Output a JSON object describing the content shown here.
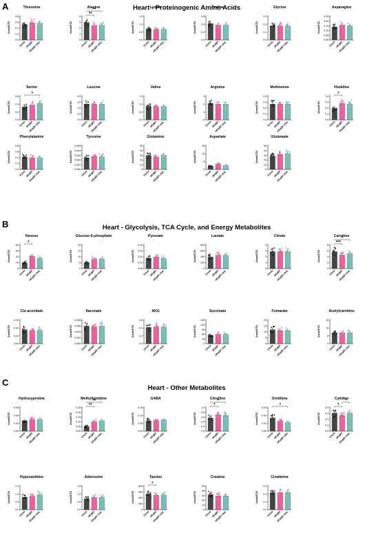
{
  "sections": [
    {
      "letter": "A",
      "title": "Heart - Proteinogenic Amino Acids"
    },
    {
      "letter": "B",
      "title": "Heart - Glycolysis, TCA Cycle, and Energy Metabolites"
    },
    {
      "letter": "C",
      "title": "Heart - Other Metabolites"
    }
  ],
  "colors": {
    "Chow": "#3b3b3b",
    "HFpEF": "#f0408c",
    "HFpEF+Adr.": "#5fb3ad"
  },
  "chart_data": [
    {
      "type": "bar",
      "section": 0,
      "title": "Threonine",
      "ylabel": "Area/ISTD",
      "categories": [
        "Chow",
        "HFpEF",
        "HFpEF+Adr."
      ],
      "values": [
        0.53,
        0.58,
        0.57
      ],
      "ylim": [
        0,
        0.8
      ],
      "yticks": [
        "0.0",
        "0.2",
        "0.4",
        "0.6",
        "0.8"
      ],
      "sig": []
    },
    {
      "type": "bar",
      "section": 0,
      "title": "Alanine",
      "ylabel": "Area/ISTD",
      "categories": [
        "Chow",
        "HFpEF",
        "HFpEF+Adr."
      ],
      "values": [
        3.0,
        2.5,
        2.5
      ],
      "ylim": [
        0,
        4
      ],
      "yticks": [
        "0",
        "1",
        "2",
        "3",
        "4"
      ],
      "sig": [
        {
          "from": 0,
          "to": 1,
          "label": "**"
        },
        {
          "from": 0,
          "to": 2,
          "label": "**"
        }
      ]
    },
    {
      "type": "bar",
      "section": 0,
      "title": "Lysine",
      "ylabel": "Area/ISTD",
      "categories": [
        "Chow",
        "HFpEF",
        "HFpEF+Adr."
      ],
      "values": [
        0.72,
        0.66,
        0.68
      ],
      "ylim": [
        0,
        1.5
      ],
      "yticks": [
        "0.0",
        "0.5",
        "1.0",
        "1.5"
      ],
      "sig": []
    },
    {
      "type": "bar",
      "section": 0,
      "title": "Proline",
      "ylabel": "Area/ISTD",
      "categories": [
        "Chow",
        "HFpEF",
        "HFpEF+Adr."
      ],
      "values": [
        0.42,
        0.38,
        0.38
      ],
      "ylim": [
        0,
        0.6
      ],
      "yticks": [
        "0.0",
        "0.2",
        "0.4",
        "0.6"
      ],
      "sig": []
    },
    {
      "type": "bar",
      "section": 0,
      "title": "Glycine",
      "ylabel": "Area/ISTD",
      "categories": [
        "Chow",
        "HFpEF",
        "HFpEF+Adr."
      ],
      "values": [
        0.18,
        0.18,
        0.18
      ],
      "ylim": [
        0,
        0.3
      ],
      "yticks": [
        "0.0",
        "0.1",
        "0.2",
        "0.3"
      ],
      "sig": []
    },
    {
      "type": "bar",
      "section": 0,
      "title": "Asparagine",
      "ylabel": "Area/ISTD",
      "categories": [
        "Chow",
        "HFpEF",
        "HFpEF+Adr."
      ],
      "values": [
        0.14,
        0.16,
        0.15
      ],
      "ylim": [
        0,
        0.25
      ],
      "yticks": [
        "0.00",
        "0.05",
        "0.10",
        "0.15",
        "0.20",
        "0.25"
      ],
      "sig": []
    },
    {
      "type": "bar",
      "section": 0,
      "title": "Serine",
      "ylabel": "Area/ISTD",
      "categories": [
        "Chow",
        "HFpEF",
        "HFpEF+Adr."
      ],
      "values": [
        0.33,
        0.38,
        0.42
      ],
      "ylim": [
        0,
        0.6
      ],
      "yticks": [
        "0.0",
        "0.2",
        "0.4",
        "0.6"
      ],
      "sig": [
        {
          "from": 0,
          "to": 2,
          "label": "*"
        }
      ]
    },
    {
      "type": "bar",
      "section": 0,
      "title": "Leucine",
      "ylabel": "Area/ISTD",
      "categories": [
        "Chow",
        "HFpEF",
        "HFpEF+Adr."
      ],
      "values": [
        1.35,
        1.33,
        1.33
      ],
      "ylim": [
        0,
        2.0
      ],
      "yticks": [
        "0.0",
        "0.5",
        "1.0",
        "1.5",
        "2.0"
      ],
      "sig": []
    },
    {
      "type": "bar",
      "section": 0,
      "title": "Valine",
      "ylabel": "Area/ISTD",
      "categories": [
        "Chow",
        "HFpEF",
        "HFpEF+Adr."
      ],
      "values": [
        0.86,
        0.86,
        0.85
      ],
      "ylim": [
        0,
        1.5
      ],
      "yticks": [
        "0.0",
        "0.5",
        "1.0",
        "1.5"
      ],
      "sig": []
    },
    {
      "type": "bar",
      "section": 0,
      "title": "Arginine",
      "ylabel": "Area/ISTD",
      "categories": [
        "Chow",
        "HFpEF",
        "HFpEF+Adr."
      ],
      "values": [
        2.1,
        2.0,
        2.0
      ],
      "ylim": [
        0,
        3
      ],
      "yticks": [
        "0",
        "1",
        "2",
        "3"
      ],
      "sig": []
    },
    {
      "type": "bar",
      "section": 0,
      "title": "Methionine",
      "ylabel": "Area/ISTD",
      "categories": [
        "Chow",
        "HFpEF",
        "HFpEF+Adr."
      ],
      "values": [
        0.27,
        0.27,
        0.27
      ],
      "ylim": [
        0,
        0.4
      ],
      "yticks": [
        "0.0",
        "0.1",
        "0.2",
        "0.3",
        "0.4"
      ],
      "sig": []
    },
    {
      "type": "bar",
      "section": 0,
      "title": "Histidine",
      "ylabel": "Area/ISTD",
      "categories": [
        "Chow",
        "HFpEF",
        "HFpEF+Adr."
      ],
      "values": [
        0.2,
        0.28,
        0.27
      ],
      "ylim": [
        0,
        0.4
      ],
      "yticks": [
        "0.0",
        "0.1",
        "0.2",
        "0.3",
        "0.4"
      ],
      "sig": [
        {
          "from": 0,
          "to": 1,
          "label": "*"
        }
      ]
    },
    {
      "type": "bar",
      "section": 0,
      "title": "Phenylalanine",
      "ylabel": "Area/ISTD",
      "categories": [
        "Chow",
        "HFpEF",
        "HFpEF+Adr."
      ],
      "values": [
        0.42,
        0.4,
        0.4
      ],
      "ylim": [
        0,
        0.8
      ],
      "yticks": [
        "0.0",
        "0.2",
        "0.4",
        "0.6",
        "0.8"
      ],
      "sig": []
    },
    {
      "type": "bar",
      "section": 0,
      "title": "Tyrosine",
      "ylabel": "Area/ISTD",
      "categories": [
        "Chow",
        "HFpEF",
        "HFpEF+Adr."
      ],
      "values": [
        0.0025,
        0.0028,
        0.0027
      ],
      "ylim": [
        0,
        0.005
      ],
      "yticks": [
        "0.000",
        "0.001",
        "0.002",
        "0.003",
        "0.004",
        "0.005"
      ],
      "sig": []
    },
    {
      "type": "bar",
      "section": 0,
      "title": "Glutamine",
      "ylabel": "Area/ISTD",
      "categories": [
        "Chow",
        "HFpEF",
        "HFpEF+Adr."
      ],
      "values": [
        30,
        27,
        30
      ],
      "ylim": [
        0,
        50
      ],
      "yticks": [
        "0",
        "10",
        "20",
        "30",
        "40",
        "50"
      ],
      "sig": []
    },
    {
      "type": "bar",
      "section": 0,
      "title": "Aspartate",
      "ylabel": "Area/ISTD",
      "categories": [
        "Chow",
        "HFpEF",
        "HFpEF+Adr."
      ],
      "values": [
        2.0,
        3.5,
        2.5
      ],
      "ylim": [
        0,
        15
      ],
      "yticks": [
        "0",
        "5",
        "10",
        "15"
      ],
      "sig": []
    },
    {
      "type": "bar",
      "section": 0,
      "title": "Glutamate",
      "ylabel": "Area/ISTD",
      "categories": [
        "Chow",
        "HFpEF",
        "HFpEF+Adr."
      ],
      "values": [
        29,
        32,
        34
      ],
      "ylim": [
        0,
        50
      ],
      "yticks": [
        "0",
        "10",
        "20",
        "30",
        "40",
        "50"
      ],
      "sig": []
    },
    {
      "type": "bar",
      "section": 1,
      "title": "Hexose",
      "ylabel": "Area/ISTD",
      "categories": [
        "Chow",
        "HFpEF",
        "HFpEF+Adr."
      ],
      "values": [
        20,
        42,
        35
      ],
      "ylim": [
        0,
        80
      ],
      "yticks": [
        "0",
        "20",
        "40",
        "60",
        "80"
      ],
      "sig": [
        {
          "from": 0,
          "to": 1,
          "label": "*"
        }
      ]
    },
    {
      "type": "bar",
      "section": 1,
      "title": "Glucose-6-phosphate",
      "ylabel": "Area/ISTD",
      "categories": [
        "Chow",
        "HFpEF",
        "HFpEF+Adr."
      ],
      "values": [
        5,
        8,
        8
      ],
      "ylim": [
        0,
        20
      ],
      "yticks": [
        "0",
        "5",
        "10",
        "15",
        "20"
      ],
      "sig": []
    },
    {
      "type": "bar",
      "section": 1,
      "title": "Pyruvate",
      "ylabel": "Area/ISTD",
      "categories": [
        "Chow",
        "HFpEF",
        "HFpEF+Adr."
      ],
      "values": [
        0.018,
        0.02,
        0.017
      ],
      "ylim": [
        0,
        0.04
      ],
      "yticks": [
        "0.00",
        "0.01",
        "0.02",
        "0.03",
        "0.04"
      ],
      "sig": []
    },
    {
      "type": "bar",
      "section": 1,
      "title": "Lactate",
      "ylabel": "Area/ISTD",
      "categories": [
        "Chow",
        "HFpEF",
        "HFpEF+Adr."
      ],
      "values": [
        400,
        450,
        450
      ],
      "ylim": [
        0,
        800
      ],
      "yticks": [
        "0",
        "200",
        "400",
        "600",
        "800"
      ],
      "sig": []
    },
    {
      "type": "bar",
      "section": 1,
      "title": "Citrate",
      "ylabel": "Area/ISTD",
      "categories": [
        "Chow",
        "HFpEF",
        "HFpEF+Adr."
      ],
      "values": [
        2.9,
        2.9,
        2.9
      ],
      "ylim": [
        0,
        4
      ],
      "yticks": [
        "0",
        "1",
        "2",
        "3",
        "4"
      ],
      "sig": []
    },
    {
      "type": "bar",
      "section": 1,
      "title": "Carnitine",
      "ylabel": "Area/ISTD",
      "categories": [
        "Chow",
        "HFpEF",
        "HFpEF+Adr."
      ],
      "values": [
        5.8,
        4.6,
        5.1
      ],
      "ylim": [
        0,
        8
      ],
      "yticks": [
        "0",
        "2",
        "4",
        "6",
        "8"
      ],
      "sig": [
        {
          "from": 0,
          "to": 1,
          "label": "***"
        },
        {
          "from": 0,
          "to": 2,
          "label": "*"
        }
      ]
    },
    {
      "type": "bar",
      "section": 1,
      "title": "Cis-aconitate",
      "ylabel": "Area/ISTD",
      "categories": [
        "Chow",
        "HFpEF",
        "HFpEF+Adr."
      ],
      "values": [
        0.018,
        0.017,
        0.017
      ],
      "ylim": [
        0,
        0.03
      ],
      "yticks": [
        "0.00",
        "0.01",
        "0.02",
        "0.03"
      ],
      "sig": []
    },
    {
      "type": "bar",
      "section": 1,
      "title": "Itaconate",
      "ylabel": "Area/ISTD",
      "categories": [
        "Chow",
        "HFpEF",
        "HFpEF+Adr."
      ],
      "values": [
        0.006,
        0.0058,
        0.006
      ],
      "ylim": [
        0,
        0.008
      ],
      "yticks": [
        "0.000",
        "0.002",
        "0.004",
        "0.006",
        "0.008"
      ],
      "sig": []
    },
    {
      "type": "bar",
      "section": 1,
      "title": "AKG",
      "ylabel": "Area/ISTD",
      "categories": [
        "Chow",
        "HFpEF",
        "HFpEF+Adr."
      ],
      "values": [
        0.42,
        0.43,
        0.43
      ],
      "ylim": [
        0,
        0.6
      ],
      "yticks": [
        "0.0",
        "0.2",
        "0.4",
        "0.6"
      ],
      "sig": []
    },
    {
      "type": "bar",
      "section": 1,
      "title": "Succinate",
      "ylabel": "Area/ISTD",
      "categories": [
        "Chow",
        "HFpEF",
        "HFpEF+Adr."
      ],
      "values": [
        55,
        60,
        58
      ],
      "ylim": [
        0,
        150
      ],
      "yticks": [
        "0",
        "30",
        "60",
        "90",
        "120",
        "150"
      ],
      "sig": []
    },
    {
      "type": "bar",
      "section": 1,
      "title": "Fumarate",
      "ylabel": "Area/ISTD",
      "categories": [
        "Chow",
        "HFpEF",
        "HFpEF+Adr."
      ],
      "values": [
        12,
        11,
        11
      ],
      "ylim": [
        0,
        20
      ],
      "yticks": [
        "0",
        "5",
        "10",
        "15",
        "20"
      ],
      "sig": []
    },
    {
      "type": "bar",
      "section": 1,
      "title": "Acetylcarnitine",
      "ylabel": "Area/ISTD",
      "categories": [
        "Chow",
        "HFpEF",
        "HFpEF+Adr."
      ],
      "values": [
        7,
        7,
        7
      ],
      "ylim": [
        0,
        15
      ],
      "yticks": [
        "0",
        "5",
        "10",
        "15"
      ],
      "sig": []
    },
    {
      "type": "bar",
      "section": 2,
      "title": "Hydroxyproline",
      "ylabel": "Area/ISTD",
      "categories": [
        "Chow",
        "HFpEF",
        "HFpEF+Adr."
      ],
      "values": [
        0.027,
        0.03,
        0.03
      ],
      "ylim": [
        0,
        0.06
      ],
      "yticks": [
        "0.00",
        "0.02",
        "0.04",
        "0.06"
      ],
      "sig": []
    },
    {
      "type": "bar",
      "section": 2,
      "title": "Methylhistidine",
      "ylabel": "Area/ISTD",
      "categories": [
        "Chow",
        "HFpEF",
        "HFpEF+Adr."
      ],
      "values": [
        0.05,
        0.1,
        0.11
      ],
      "ylim": [
        0,
        0.25
      ],
      "yticks": [
        "0.00",
        "0.05",
        "0.10",
        "0.15",
        "0.20",
        "0.25"
      ],
      "sig": [
        {
          "from": 0,
          "to": 1,
          "label": "**"
        },
        {
          "from": 0,
          "to": 2,
          "label": "**"
        }
      ]
    },
    {
      "type": "bar",
      "section": 2,
      "title": "GABA",
      "ylabel": "Area/ISTD",
      "categories": [
        "Chow",
        "HFpEF",
        "HFpEF+Adr."
      ],
      "values": [
        0.065,
        0.068,
        0.07
      ],
      "ylim": [
        0,
        0.15
      ],
      "yticks": [
        "0.00",
        "0.05",
        "0.10",
        "0.15"
      ],
      "sig": []
    },
    {
      "type": "bar",
      "section": 2,
      "title": "Citrulline",
      "ylabel": "Area/ISTD",
      "categories": [
        "Chow",
        "HFpEF",
        "HFpEF+Adr."
      ],
      "values": [
        0.55,
        0.7,
        0.67
      ],
      "ylim": [
        0,
        1.0
      ],
      "yticks": [
        "0.0",
        "0.2",
        "0.4",
        "0.6",
        "0.8",
        "1.0"
      ],
      "sig": [
        {
          "from": 0,
          "to": 1,
          "label": "*"
        },
        {
          "from": 0,
          "to": 2,
          "label": "*"
        }
      ]
    },
    {
      "type": "bar",
      "section": 2,
      "title": "Ornithine",
      "ylabel": "Area/ISTD",
      "categories": [
        "Chow",
        "HFpEF",
        "HFpEF+Adr."
      ],
      "values": [
        0.017,
        0.013,
        0.011
      ],
      "ylim": [
        0,
        0.03
      ],
      "yticks": [
        "0.00",
        "0.01",
        "0.02",
        "0.03"
      ],
      "sig": [
        {
          "from": 0,
          "to": 2,
          "label": "*"
        }
      ]
    },
    {
      "type": "bar",
      "section": 2,
      "title": "Cytidine",
      "ylabel": "Area/ISTD",
      "categories": [
        "Chow",
        "HFpEF",
        "HFpEF+Adr."
      ],
      "values": [
        0.31,
        0.27,
        0.31
      ],
      "ylim": [
        0,
        0.4
      ],
      "yticks": [
        "0.0",
        "0.1",
        "0.2",
        "0.3",
        "0.4"
      ],
      "sig": [
        {
          "from": 0,
          "to": 1,
          "label": "*"
        },
        {
          "from": 1,
          "to": 2,
          "label": "*"
        }
      ]
    },
    {
      "type": "bar",
      "section": 2,
      "title": "Hypoxanthine",
      "ylabel": "Area/ISTD",
      "categories": [
        "Chow",
        "HFpEF",
        "HFpEF+Adr."
      ],
      "values": [
        0.8,
        0.85,
        0.95
      ],
      "ylim": [
        0,
        1.5
      ],
      "yticks": [
        "0.0",
        "0.5",
        "1.0",
        "1.5"
      ],
      "sig": []
    },
    {
      "type": "bar",
      "section": 2,
      "title": "Adenosine",
      "ylabel": "Area/ISTD",
      "categories": [
        "Chow",
        "HFpEF",
        "HFpEF+Adr."
      ],
      "values": [
        0.7,
        0.78,
        0.78
      ],
      "ylim": [
        0,
        1.5
      ],
      "yticks": [
        "0.0",
        "0.5",
        "1.0",
        "1.5"
      ],
      "sig": []
    },
    {
      "type": "bar",
      "section": 2,
      "title": "Taurine",
      "ylabel": "Area/ISTD",
      "categories": [
        "Chow",
        "HFpEF",
        "HFpEF+Adr."
      ],
      "values": [
        540,
        490,
        500
      ],
      "ylim": [
        0,
        800
      ],
      "yticks": [
        "0",
        "200",
        "400",
        "600",
        "800"
      ],
      "sig": [
        {
          "from": 0,
          "to": 1,
          "label": "*"
        }
      ]
    },
    {
      "type": "bar",
      "section": 2,
      "title": "Creatine",
      "ylabel": "Area/ISTD",
      "categories": [
        "Chow",
        "HFpEF",
        "HFpEF+Adr."
      ],
      "values": [
        32,
        29,
        29
      ],
      "ylim": [
        0,
        50
      ],
      "yticks": [
        "0",
        "10",
        "20",
        "30",
        "40",
        "50"
      ],
      "sig": []
    },
    {
      "type": "bar",
      "section": 2,
      "title": "Creatinine",
      "ylabel": "Area/ISTD",
      "categories": [
        "Chow",
        "HFpEF",
        "HFpEF+Adr."
      ],
      "values": [
        0.22,
        0.22,
        0.22
      ],
      "ylim": [
        0,
        0.3
      ],
      "yticks": [
        "0.0",
        "0.1",
        "0.2",
        "0.3"
      ],
      "sig": []
    }
  ]
}
